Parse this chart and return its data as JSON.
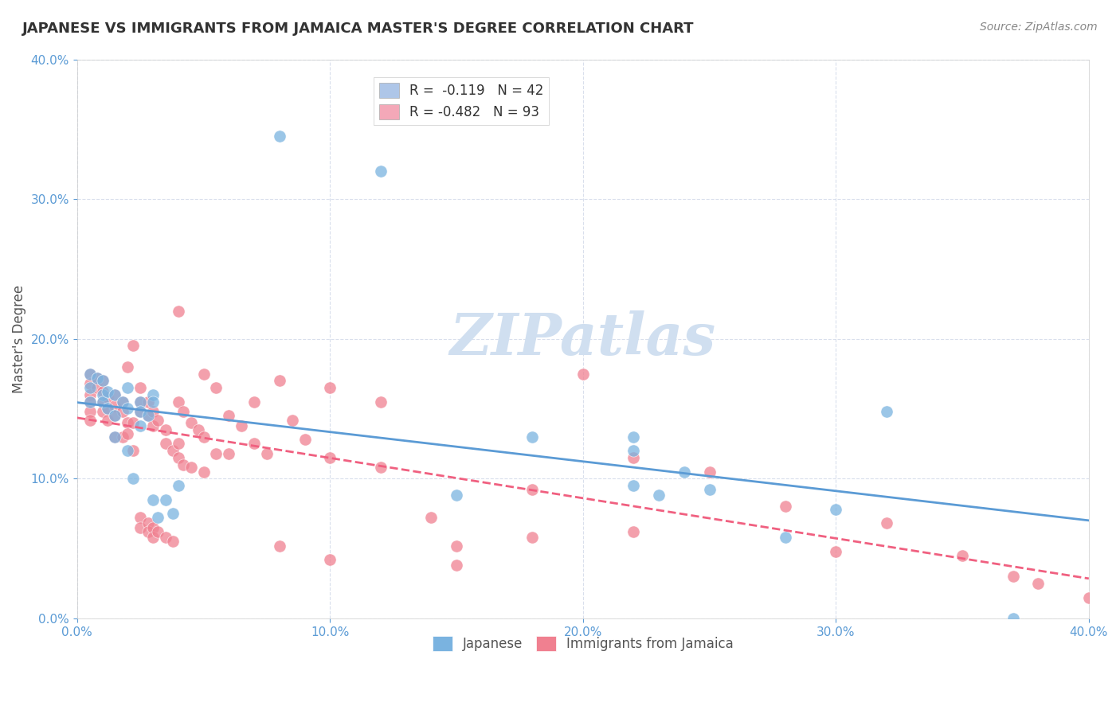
{
  "title": "JAPANESE VS IMMIGRANTS FROM JAMAICA MASTER'S DEGREE CORRELATION CHART",
  "source": "Source: ZipAtlas.com",
  "ylabel": "Master's Degree",
  "xlim": [
    0.0,
    0.4
  ],
  "ylim": [
    0.0,
    0.4
  ],
  "watermark": "ZIPatlas",
  "legend_entries": [
    {
      "label": "R =  -0.119   N = 42",
      "color": "#aec6e8"
    },
    {
      "label": "R = -0.482   N = 93",
      "color": "#f4a8b8"
    }
  ],
  "japanese_color": "#7ab3e0",
  "jamaica_color": "#f08090",
  "trendline_japanese_color": "#5b9bd5",
  "trendline_jamaica_color": "#f06080",
  "japanese_points": [
    [
      0.005,
      0.175
    ],
    [
      0.005,
      0.165
    ],
    [
      0.005,
      0.155
    ],
    [
      0.008,
      0.172
    ],
    [
      0.01,
      0.17
    ],
    [
      0.01,
      0.16
    ],
    [
      0.01,
      0.155
    ],
    [
      0.012,
      0.162
    ],
    [
      0.012,
      0.15
    ],
    [
      0.015,
      0.145
    ],
    [
      0.015,
      0.16
    ],
    [
      0.015,
      0.13
    ],
    [
      0.018,
      0.155
    ],
    [
      0.02,
      0.165
    ],
    [
      0.02,
      0.15
    ],
    [
      0.02,
      0.12
    ],
    [
      0.022,
      0.1
    ],
    [
      0.025,
      0.155
    ],
    [
      0.025,
      0.148
    ],
    [
      0.025,
      0.138
    ],
    [
      0.028,
      0.145
    ],
    [
      0.03,
      0.16
    ],
    [
      0.03,
      0.155
    ],
    [
      0.03,
      0.085
    ],
    [
      0.032,
      0.072
    ],
    [
      0.035,
      0.085
    ],
    [
      0.038,
      0.075
    ],
    [
      0.04,
      0.095
    ],
    [
      0.08,
      0.345
    ],
    [
      0.12,
      0.32
    ],
    [
      0.15,
      0.088
    ],
    [
      0.18,
      0.13
    ],
    [
      0.22,
      0.12
    ],
    [
      0.22,
      0.095
    ],
    [
      0.22,
      0.13
    ],
    [
      0.23,
      0.088
    ],
    [
      0.24,
      0.105
    ],
    [
      0.25,
      0.092
    ],
    [
      0.28,
      0.058
    ],
    [
      0.3,
      0.078
    ],
    [
      0.32,
      0.148
    ],
    [
      0.37,
      0.0
    ]
  ],
  "jamaica_points": [
    [
      0.005,
      0.175
    ],
    [
      0.005,
      0.168
    ],
    [
      0.005,
      0.16
    ],
    [
      0.005,
      0.155
    ],
    [
      0.005,
      0.148
    ],
    [
      0.005,
      0.142
    ],
    [
      0.008,
      0.172
    ],
    [
      0.008,
      0.165
    ],
    [
      0.01,
      0.17
    ],
    [
      0.01,
      0.162
    ],
    [
      0.01,
      0.155
    ],
    [
      0.01,
      0.148
    ],
    [
      0.012,
      0.158
    ],
    [
      0.012,
      0.15
    ],
    [
      0.012,
      0.142
    ],
    [
      0.015,
      0.16
    ],
    [
      0.015,
      0.152
    ],
    [
      0.015,
      0.145
    ],
    [
      0.015,
      0.13
    ],
    [
      0.018,
      0.155
    ],
    [
      0.018,
      0.148
    ],
    [
      0.018,
      0.13
    ],
    [
      0.02,
      0.18
    ],
    [
      0.02,
      0.14
    ],
    [
      0.02,
      0.132
    ],
    [
      0.022,
      0.195
    ],
    [
      0.022,
      0.14
    ],
    [
      0.022,
      0.12
    ],
    [
      0.025,
      0.165
    ],
    [
      0.025,
      0.155
    ],
    [
      0.025,
      0.148
    ],
    [
      0.025,
      0.072
    ],
    [
      0.025,
      0.065
    ],
    [
      0.028,
      0.155
    ],
    [
      0.028,
      0.145
    ],
    [
      0.028,
      0.068
    ],
    [
      0.028,
      0.062
    ],
    [
      0.03,
      0.148
    ],
    [
      0.03,
      0.138
    ],
    [
      0.03,
      0.065
    ],
    [
      0.03,
      0.058
    ],
    [
      0.032,
      0.142
    ],
    [
      0.032,
      0.062
    ],
    [
      0.035,
      0.135
    ],
    [
      0.035,
      0.125
    ],
    [
      0.035,
      0.058
    ],
    [
      0.038,
      0.12
    ],
    [
      0.038,
      0.055
    ],
    [
      0.04,
      0.22
    ],
    [
      0.04,
      0.155
    ],
    [
      0.04,
      0.125
    ],
    [
      0.04,
      0.115
    ],
    [
      0.042,
      0.148
    ],
    [
      0.042,
      0.11
    ],
    [
      0.045,
      0.14
    ],
    [
      0.045,
      0.108
    ],
    [
      0.048,
      0.135
    ],
    [
      0.05,
      0.175
    ],
    [
      0.05,
      0.13
    ],
    [
      0.05,
      0.105
    ],
    [
      0.055,
      0.165
    ],
    [
      0.055,
      0.118
    ],
    [
      0.06,
      0.145
    ],
    [
      0.06,
      0.118
    ],
    [
      0.065,
      0.138
    ],
    [
      0.07,
      0.155
    ],
    [
      0.07,
      0.125
    ],
    [
      0.075,
      0.118
    ],
    [
      0.08,
      0.17
    ],
    [
      0.085,
      0.142
    ],
    [
      0.09,
      0.128
    ],
    [
      0.1,
      0.165
    ],
    [
      0.1,
      0.115
    ],
    [
      0.12,
      0.155
    ],
    [
      0.12,
      0.108
    ],
    [
      0.14,
      0.072
    ],
    [
      0.15,
      0.052
    ],
    [
      0.18,
      0.092
    ],
    [
      0.2,
      0.175
    ],
    [
      0.22,
      0.115
    ],
    [
      0.25,
      0.105
    ],
    [
      0.28,
      0.08
    ],
    [
      0.3,
      0.048
    ],
    [
      0.32,
      0.068
    ],
    [
      0.35,
      0.045
    ],
    [
      0.37,
      0.03
    ],
    [
      0.38,
      0.025
    ],
    [
      0.4,
      0.015
    ],
    [
      0.22,
      0.062
    ],
    [
      0.18,
      0.058
    ],
    [
      0.15,
      0.038
    ],
    [
      0.1,
      0.042
    ],
    [
      0.08,
      0.052
    ]
  ],
  "background_color": "#ffffff",
  "grid_color": "#d0d8e8",
  "title_color": "#333333",
  "axis_color": "#5b9bd5",
  "watermark_color": "#d0dff0"
}
